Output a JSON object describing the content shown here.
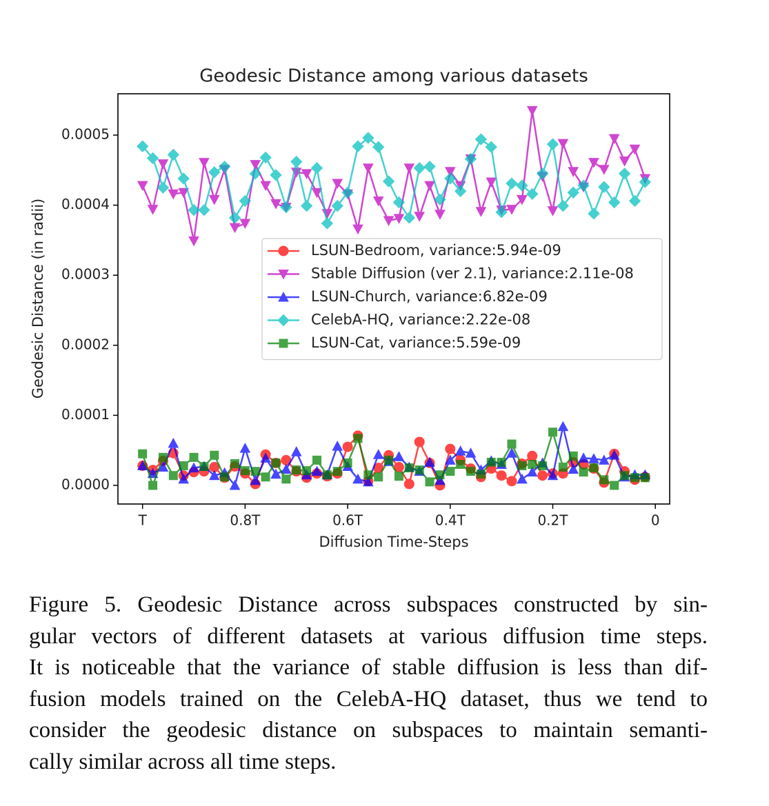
{
  "chart_data": {
    "type": "line",
    "title": "Geodesic Distance among various datasets",
    "xlabel": "Diffusion Time-Steps",
    "ylabel": "Geodesic Distance (in radii)",
    "x": [
      1,
      0.98,
      0.96,
      0.94,
      0.92,
      0.9,
      0.88,
      0.86,
      0.84,
      0.82,
      0.8,
      0.78,
      0.76,
      0.74,
      0.72,
      0.7,
      0.68,
      0.66,
      0.64,
      0.62,
      0.6,
      0.58,
      0.56,
      0.54,
      0.52,
      0.5,
      0.48,
      0.46,
      0.44,
      0.42,
      0.4,
      0.38,
      0.36,
      0.34,
      0.32,
      0.3,
      0.28,
      0.26,
      0.24,
      0.22,
      0.2,
      0.18,
      0.16,
      0.14,
      0.12,
      0.1,
      0.08,
      0.06,
      0.04,
      0.02
    ],
    "xlim": [
      1.048,
      -0.028
    ],
    "xticks": [
      {
        "value": 1,
        "label": "T"
      },
      {
        "value": 0.8,
        "label": "0.8T"
      },
      {
        "value": 0.6,
        "label": "0.6T"
      },
      {
        "value": 0.4,
        "label": "0.4T"
      },
      {
        "value": 0.2,
        "label": "0.2T"
      },
      0
    ],
    "ylim": [
      -2.66e-05,
      0.000559
    ],
    "yticks": [
      {
        "value": 0,
        "label": "0.0000"
      },
      0.0001,
      0.0002,
      0.0003,
      0.0004,
      0.0005
    ],
    "legend": "center right",
    "series": [
      {
        "name": "LSUN-Bedroom, variance:5.94e-09",
        "color": "#ff0000",
        "marker": "o",
        "values": [
          2.8e-05,
          2.2e-05,
          3.5e-05,
          4.6e-05,
          1.4e-05,
          1.9e-05,
          2e-05,
          2.6e-05,
          1.1e-05,
          2.7e-05,
          1.7e-05,
          2e-06,
          4.4e-05,
          3.2e-05,
          3.6e-05,
          2e-05,
          1.1e-05,
          1.7e-05,
          1.3e-05,
          1.7e-05,
          5.5e-05,
          7.1e-05,
          6e-06,
          2.5e-05,
          4.3e-05,
          2.6e-05,
          2e-06,
          6.2e-05,
          3.2e-05,
          0,
          5.2e-05,
          3.6e-05,
          2.4e-05,
          1.2e-05,
          2.4e-05,
          1.4e-05,
          6e-06,
          3.1e-05,
          4.2e-05,
          1.4e-05,
          1.7e-05,
          1.7e-05,
          3.3e-05,
          3e-05,
          2.4e-05,
          4e-06,
          4.5e-05,
          2e-05,
          8e-06,
          1.2e-05
        ]
      },
      {
        "name": "Stable Diffusion (ver 2.1), variance:2.11e-08",
        "color": "#bf00bf",
        "marker": "v",
        "values": [
          0.000428,
          0.000394,
          0.000459,
          0.000416,
          0.000418,
          0.000349,
          0.000461,
          0.000408,
          0.000451,
          0.000368,
          0.000374,
          0.000458,
          0.000428,
          0.000402,
          0.000397,
          0.000447,
          0.000445,
          0.000418,
          0.000388,
          0.000431,
          0.000416,
          0.000366,
          0.000453,
          0.000406,
          0.000378,
          0.000381,
          0.000453,
          0.000384,
          0.000428,
          0.000387,
          0.000448,
          0.000428,
          0.000466,
          0.000391,
          0.000433,
          0.000393,
          0.000394,
          0.000408,
          0.000535,
          0.000441,
          0.000392,
          0.000488,
          0.000448,
          0.000426,
          0.000461,
          0.000451,
          0.000495,
          0.000463,
          0.00048,
          0.000438
        ]
      },
      {
        "name": "LSUN-Church, variance:6.82e-09",
        "color": "#0000ff",
        "marker": "^",
        "values": [
          2.8e-05,
          1.7e-05,
          2.6e-05,
          6e-05,
          9e-06,
          2.5e-05,
          2.7e-05,
          1.4e-05,
          1.8e-05,
          0,
          5.3e-05,
          7e-06,
          3.9e-05,
          1.6e-05,
          2.3e-05,
          4.8e-05,
          1.5e-05,
          2e-05,
          1.5e-05,
          5.6e-05,
          2.7e-05,
          9e-06,
          5e-06,
          4.4e-05,
          3.4e-05,
          4.1e-05,
          2.6e-05,
          2e-05,
          3.3e-05,
          7e-06,
          3.6e-05,
          4.9e-05,
          4.6e-05,
          2.2e-05,
          3.5e-05,
          3e-05,
          4.6e-05,
          9e-06,
          1.9e-05,
          3.2e-05,
          1.4e-05,
          8.4e-05,
          2.3e-05,
          3.9e-05,
          3.8e-05,
          3.6e-05,
          4.3e-05,
          1.2e-05,
          1.5e-05,
          1.5e-05
        ]
      },
      {
        "name": "CelebA-HQ, variance:2.22e-08",
        "color": "#00bfbf",
        "marker": "D",
        "values": [
          0.000484,
          0.000467,
          0.000425,
          0.000472,
          0.000438,
          0.000393,
          0.000393,
          0.000447,
          0.000455,
          0.000382,
          0.000406,
          0.000445,
          0.000468,
          0.000443,
          0.000397,
          0.000462,
          0.000399,
          0.000453,
          0.000374,
          0.000399,
          0.000418,
          0.000484,
          0.000496,
          0.000483,
          0.000434,
          0.000404,
          0.000382,
          0.000453,
          0.000455,
          0.000408,
          0.000438,
          0.00042,
          0.000466,
          0.000494,
          0.000483,
          0.00039,
          0.000431,
          0.000428,
          0.000416,
          0.000445,
          0.000487,
          0.000399,
          0.000418,
          0.000428,
          0.000388,
          0.000426,
          0.000404,
          0.000445,
          0.000406,
          0.000433
        ]
      },
      {
        "name": "LSUN-Cat, variance:5.59e-09",
        "color": "#008000",
        "marker": "s",
        "values": [
          4.5e-05,
          0,
          4e-05,
          1.4e-05,
          2.8e-05,
          4e-05,
          2.7e-05,
          4.3e-05,
          1.2e-05,
          3.1e-05,
          2.1e-05,
          2e-05,
          1.2e-05,
          3.2e-05,
          9e-06,
          2.2e-05,
          2.1e-05,
          3.6e-05,
          1.5e-05,
          2e-05,
          3.2e-05,
          6.7e-05,
          1.5e-05,
          1.2e-05,
          3.6e-05,
          1.3e-05,
          2.5e-05,
          2.2e-05,
          5e-06,
          1.5e-05,
          2e-05,
          3e-05,
          2e-05,
          1.6e-05,
          3.3e-05,
          3.3e-05,
          5.9e-05,
          2.8e-05,
          3e-05,
          2.8e-05,
          7.6e-05,
          2.6e-05,
          4.2e-05,
          1.9e-05,
          2.5e-05,
          8e-06,
          0,
          1.4e-05,
          1.1e-05,
          1.1e-05
        ]
      }
    ]
  },
  "caption": {
    "lines": [
      "Figure 5. Geodesic Distance across subspaces constructed by sin-",
      "gular vectors of different datasets at various diffusion time steps.",
      "It is noticeable that the variance of stable diffusion is less than dif-",
      "fusion models trained on the CelebA-HQ dataset, thus we tend to",
      "consider the geodesic distance on subspaces to maintain semanti-",
      "cally similar across all time steps."
    ]
  }
}
